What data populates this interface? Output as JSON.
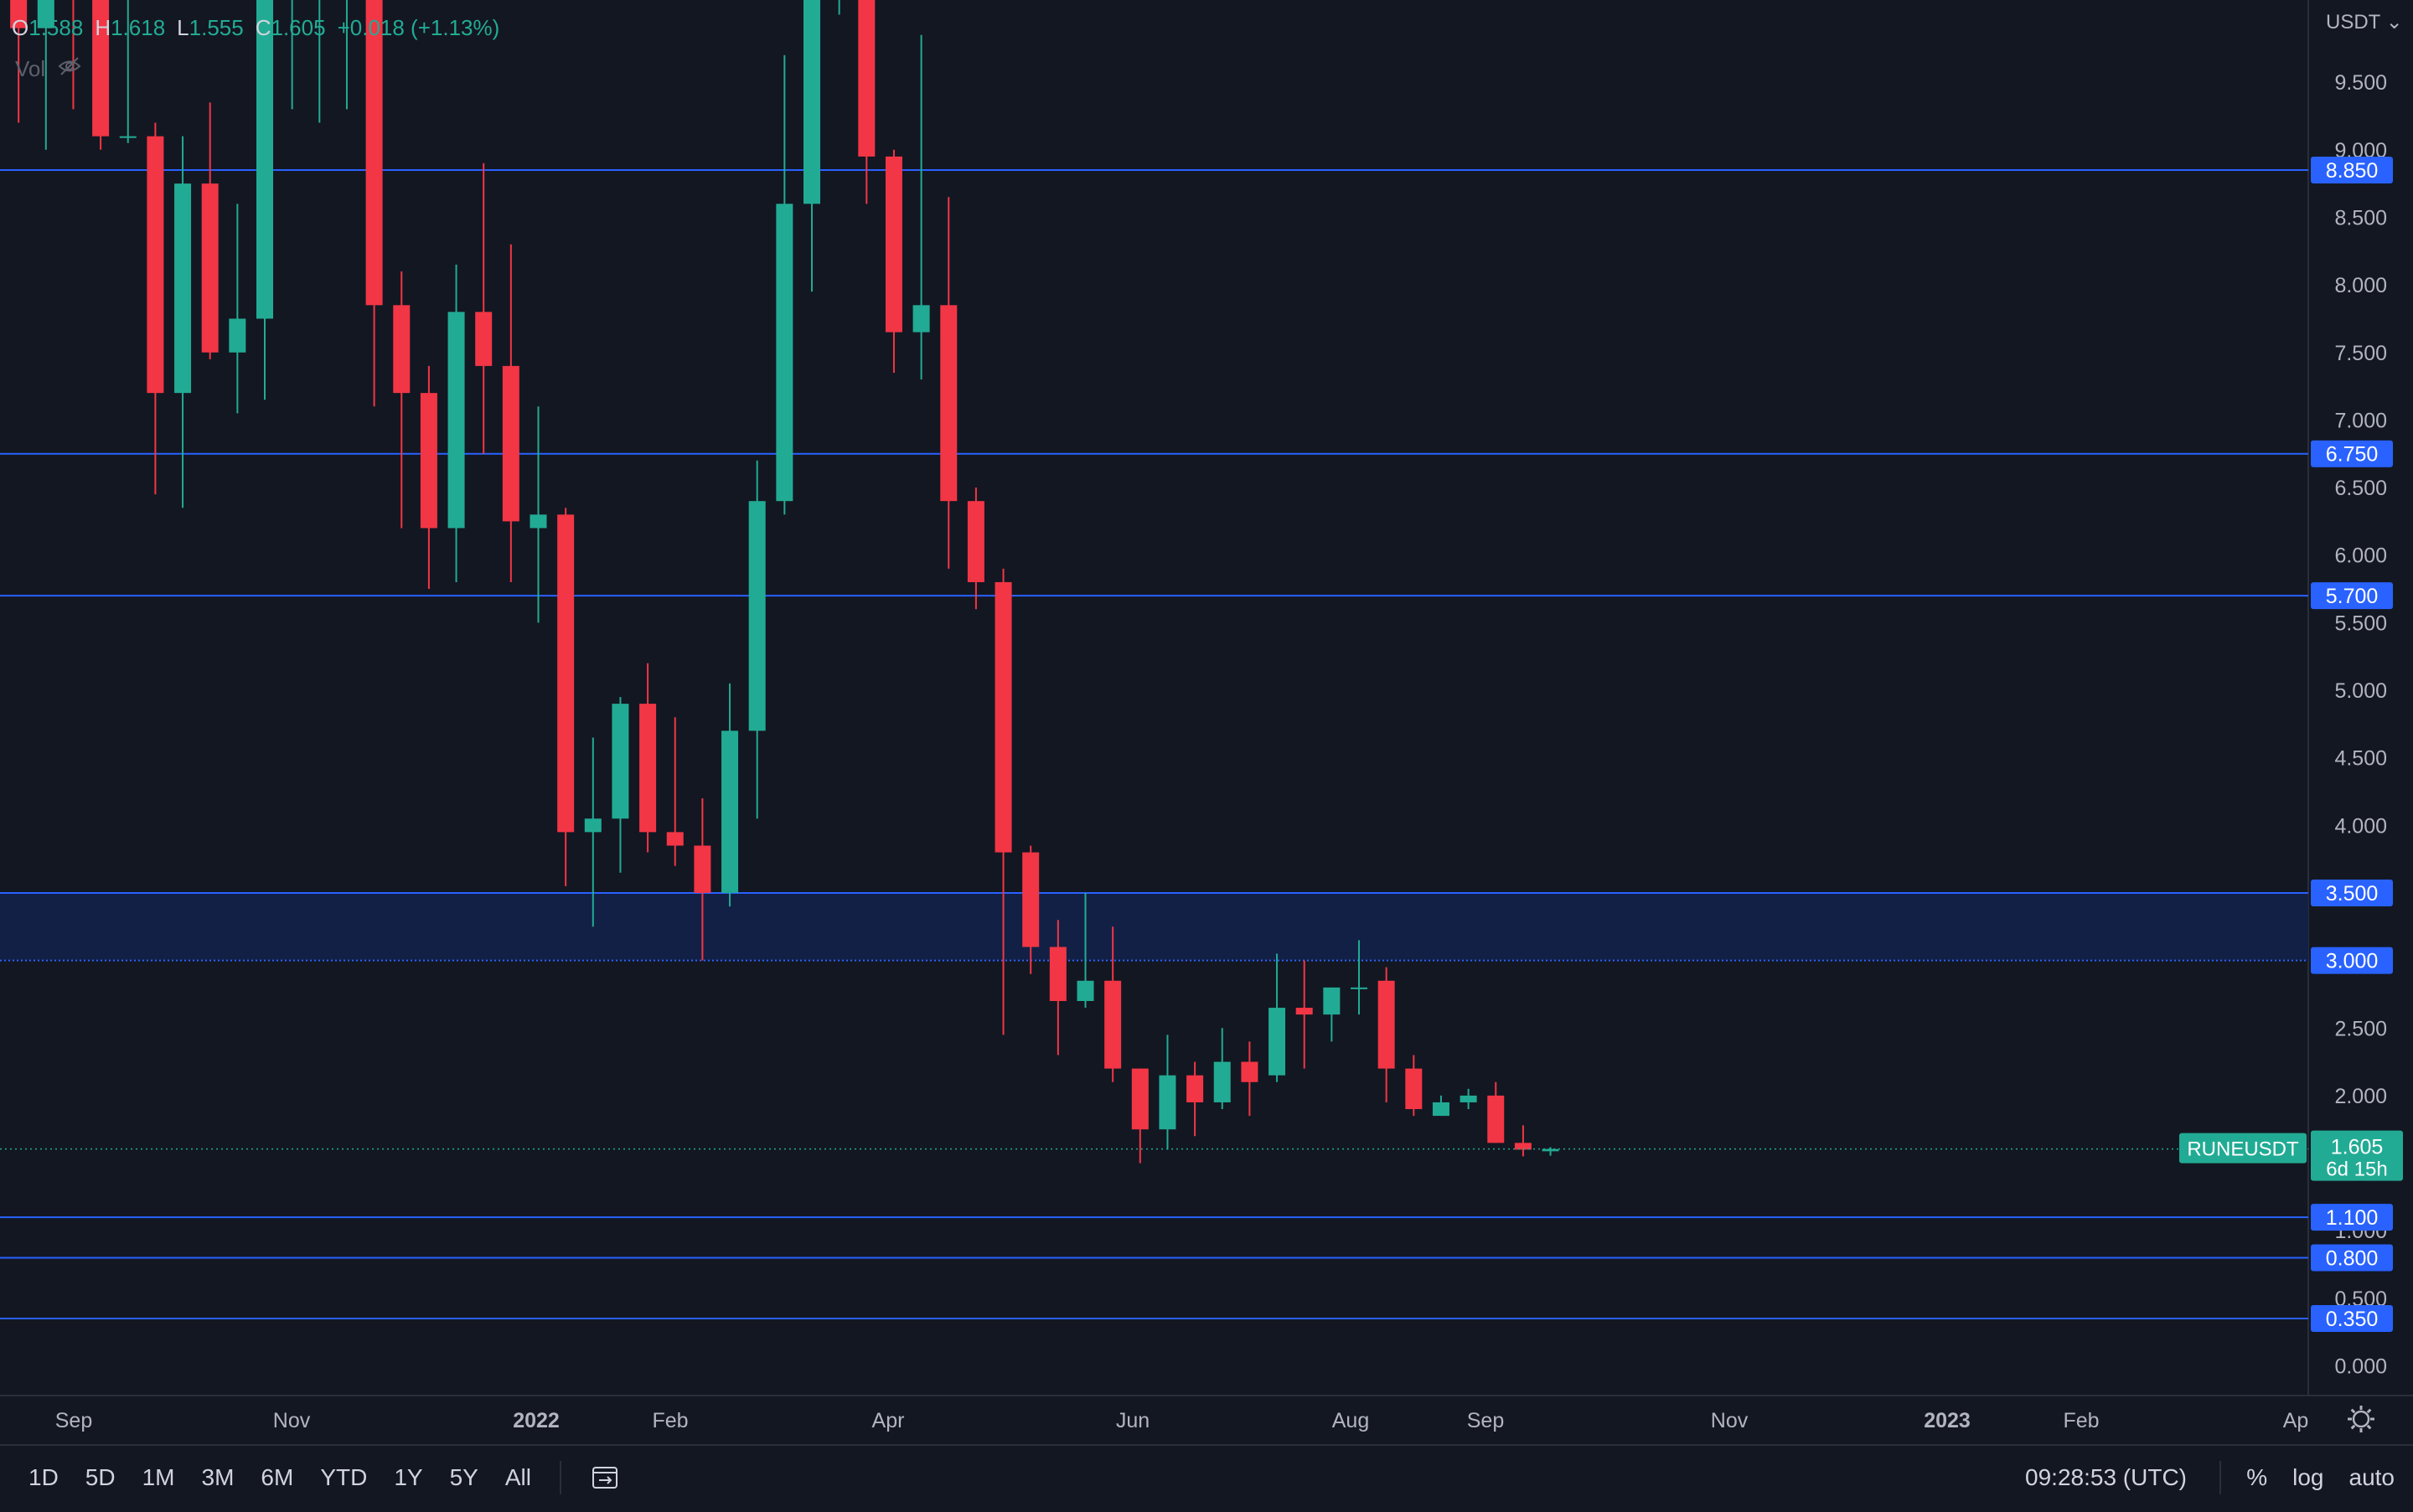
{
  "ohlc": {
    "o_key": "O",
    "o_val": "1.588",
    "h_key": "H",
    "h_val": "1.618",
    "l_key": "L",
    "l_val": "1.555",
    "c_key": "C",
    "c_val": "1.605",
    "change": "+0.018 (+1.13%)"
  },
  "vol_label": "Vol",
  "currency": "USDT",
  "colors": {
    "background": "#131722",
    "up": "#22ab94",
    "down": "#f23645",
    "level_line": "#2962ff",
    "zone": "#132045"
  },
  "chart_data": {
    "type": "candlestick",
    "symbol": "RUNEUSDT",
    "interval": "1W",
    "x_ticks": [
      "Sep",
      "Nov",
      "2022",
      "Feb",
      "Apr",
      "Jun",
      "Aug",
      "Sep",
      "Nov",
      "2023",
      "Feb",
      "Ap"
    ],
    "y_ticks": [
      "0.000",
      "0.500",
      "1.000",
      "1.500",
      "2.000",
      "2.500",
      "3.000",
      "3.500",
      "4.000",
      "4.500",
      "5.000",
      "5.500",
      "6.000",
      "6.500",
      "7.000",
      "7.500",
      "8.000",
      "8.500",
      "9.000",
      "9.500"
    ],
    "ylim": [
      -0.45,
      10.05
    ],
    "horizontal_levels": [
      8.85,
      6.75,
      5.7,
      1.1,
      0.8,
      0.35
    ],
    "level_labels": [
      "8.850",
      "6.750",
      "5.700",
      "1.100",
      "0.800",
      "0.350"
    ],
    "zone": {
      "from": 3.0,
      "to": 3.5,
      "labels": [
        "3.500",
        "3.000"
      ]
    },
    "current_price": 1.605,
    "current_price_label": "1.605",
    "countdown": "6d 15h",
    "candles": [
      {
        "o": 9.5,
        "h": 10.5,
        "l": 8.3,
        "c": 10.5
      },
      {
        "o": 10.5,
        "h": 10.5,
        "l": 9.2,
        "c": 9.9
      },
      {
        "o": 9.9,
        "h": 10.5,
        "l": 9.0,
        "c": 10.5
      },
      {
        "o": 10.5,
        "h": 10.5,
        "l": 9.3,
        "c": 10.4
      },
      {
        "o": 10.4,
        "h": 10.5,
        "l": 9.0,
        "c": 9.1
      },
      {
        "o": 9.1,
        "h": 10.2,
        "l": 9.05,
        "c": 9.1
      },
      {
        "o": 9.1,
        "h": 9.2,
        "l": 6.45,
        "c": 7.2
      },
      {
        "o": 7.2,
        "h": 9.1,
        "l": 6.35,
        "c": 8.75
      },
      {
        "o": 8.75,
        "h": 9.35,
        "l": 7.45,
        "c": 7.5
      },
      {
        "o": 7.5,
        "h": 8.6,
        "l": 7.05,
        "c": 7.75
      },
      {
        "o": 7.75,
        "h": 10.5,
        "l": 7.15,
        "c": 10.5
      },
      {
        "o": 10.5,
        "h": 10.5,
        "l": 9.3,
        "c": 10.5
      },
      {
        "o": 10.5,
        "h": 10.5,
        "l": 9.2,
        "c": 10.5
      },
      {
        "o": 10.5,
        "h": 10.5,
        "l": 9.3,
        "c": 10.5
      },
      {
        "o": 10.5,
        "h": 10.5,
        "l": 7.1,
        "c": 7.85
      },
      {
        "o": 7.85,
        "h": 8.1,
        "l": 6.2,
        "c": 7.2
      },
      {
        "o": 7.2,
        "h": 7.4,
        "l": 5.75,
        "c": 6.2
      },
      {
        "o": 6.2,
        "h": 8.15,
        "l": 5.8,
        "c": 7.8
      },
      {
        "o": 7.8,
        "h": 8.9,
        "l": 6.75,
        "c": 7.4
      },
      {
        "o": 7.4,
        "h": 8.3,
        "l": 5.8,
        "c": 6.25
      },
      {
        "o": 6.2,
        "h": 7.1,
        "l": 5.5,
        "c": 6.3
      },
      {
        "o": 6.3,
        "h": 6.35,
        "l": 3.55,
        "c": 3.95
      },
      {
        "o": 3.95,
        "h": 4.65,
        "l": 3.25,
        "c": 4.05
      },
      {
        "o": 4.05,
        "h": 4.95,
        "l": 3.65,
        "c": 4.9
      },
      {
        "o": 4.9,
        "h": 5.2,
        "l": 3.8,
        "c": 3.95
      },
      {
        "o": 3.95,
        "h": 4.8,
        "l": 3.7,
        "c": 3.85
      },
      {
        "o": 3.85,
        "h": 4.2,
        "l": 3.0,
        "c": 3.5
      },
      {
        "o": 3.5,
        "h": 5.05,
        "l": 3.4,
        "c": 4.7
      },
      {
        "o": 4.7,
        "h": 6.7,
        "l": 4.05,
        "c": 6.4
      },
      {
        "o": 6.4,
        "h": 9.7,
        "l": 6.3,
        "c": 8.6
      },
      {
        "o": 8.6,
        "h": 10.5,
        "l": 7.95,
        "c": 10.5
      },
      {
        "o": 10.5,
        "h": 10.5,
        "l": 10.0,
        "c": 10.5
      },
      {
        "o": 10.5,
        "h": 10.5,
        "l": 8.6,
        "c": 8.95
      },
      {
        "o": 8.95,
        "h": 9.0,
        "l": 7.35,
        "c": 7.65
      },
      {
        "o": 7.65,
        "h": 9.85,
        "l": 7.3,
        "c": 7.85
      },
      {
        "o": 7.85,
        "h": 8.65,
        "l": 5.9,
        "c": 6.4
      },
      {
        "o": 6.4,
        "h": 6.5,
        "l": 5.6,
        "c": 5.8
      },
      {
        "o": 5.8,
        "h": 5.9,
        "l": 2.45,
        "c": 3.8
      },
      {
        "o": 3.8,
        "h": 3.85,
        "l": 2.9,
        "c": 3.1
      },
      {
        "o": 3.1,
        "h": 3.3,
        "l": 2.3,
        "c": 2.7
      },
      {
        "o": 2.7,
        "h": 3.5,
        "l": 2.65,
        "c": 2.85
      },
      {
        "o": 2.85,
        "h": 3.25,
        "l": 2.1,
        "c": 2.2
      },
      {
        "o": 2.2,
        "h": 2.2,
        "l": 1.5,
        "c": 1.75
      },
      {
        "o": 1.75,
        "h": 2.45,
        "l": 1.6,
        "c": 2.15
      },
      {
        "o": 2.15,
        "h": 2.25,
        "l": 1.7,
        "c": 1.95
      },
      {
        "o": 1.95,
        "h": 2.5,
        "l": 1.9,
        "c": 2.25
      },
      {
        "o": 2.25,
        "h": 2.4,
        "l": 1.85,
        "c": 2.1
      },
      {
        "o": 2.15,
        "h": 3.05,
        "l": 2.1,
        "c": 2.65
      },
      {
        "o": 2.65,
        "h": 3.0,
        "l": 2.2,
        "c": 2.6
      },
      {
        "o": 2.6,
        "h": 2.8,
        "l": 2.4,
        "c": 2.8
      },
      {
        "o": 2.8,
        "h": 3.15,
        "l": 2.6,
        "c": 2.8
      },
      {
        "o": 2.85,
        "h": 2.95,
        "l": 1.95,
        "c": 2.2
      },
      {
        "o": 2.2,
        "h": 2.3,
        "l": 1.85,
        "c": 1.9
      },
      {
        "o": 1.85,
        "h": 2.0,
        "l": 1.85,
        "c": 1.95
      },
      {
        "o": 1.95,
        "h": 2.05,
        "l": 1.9,
        "c": 2.0
      },
      {
        "o": 2.0,
        "h": 2.1,
        "l": 1.65,
        "c": 1.65
      },
      {
        "o": 1.65,
        "h": 1.78,
        "l": 1.55,
        "c": 1.6
      },
      {
        "o": 1.588,
        "h": 1.618,
        "l": 1.555,
        "c": 1.605
      }
    ]
  },
  "bottom_bar": {
    "timeframes": [
      "1D",
      "5D",
      "1M",
      "3M",
      "6M",
      "YTD",
      "1Y",
      "5Y",
      "All"
    ],
    "clock": "09:28:53 (UTC)",
    "percent": "%",
    "log": "log",
    "auto": "auto"
  }
}
